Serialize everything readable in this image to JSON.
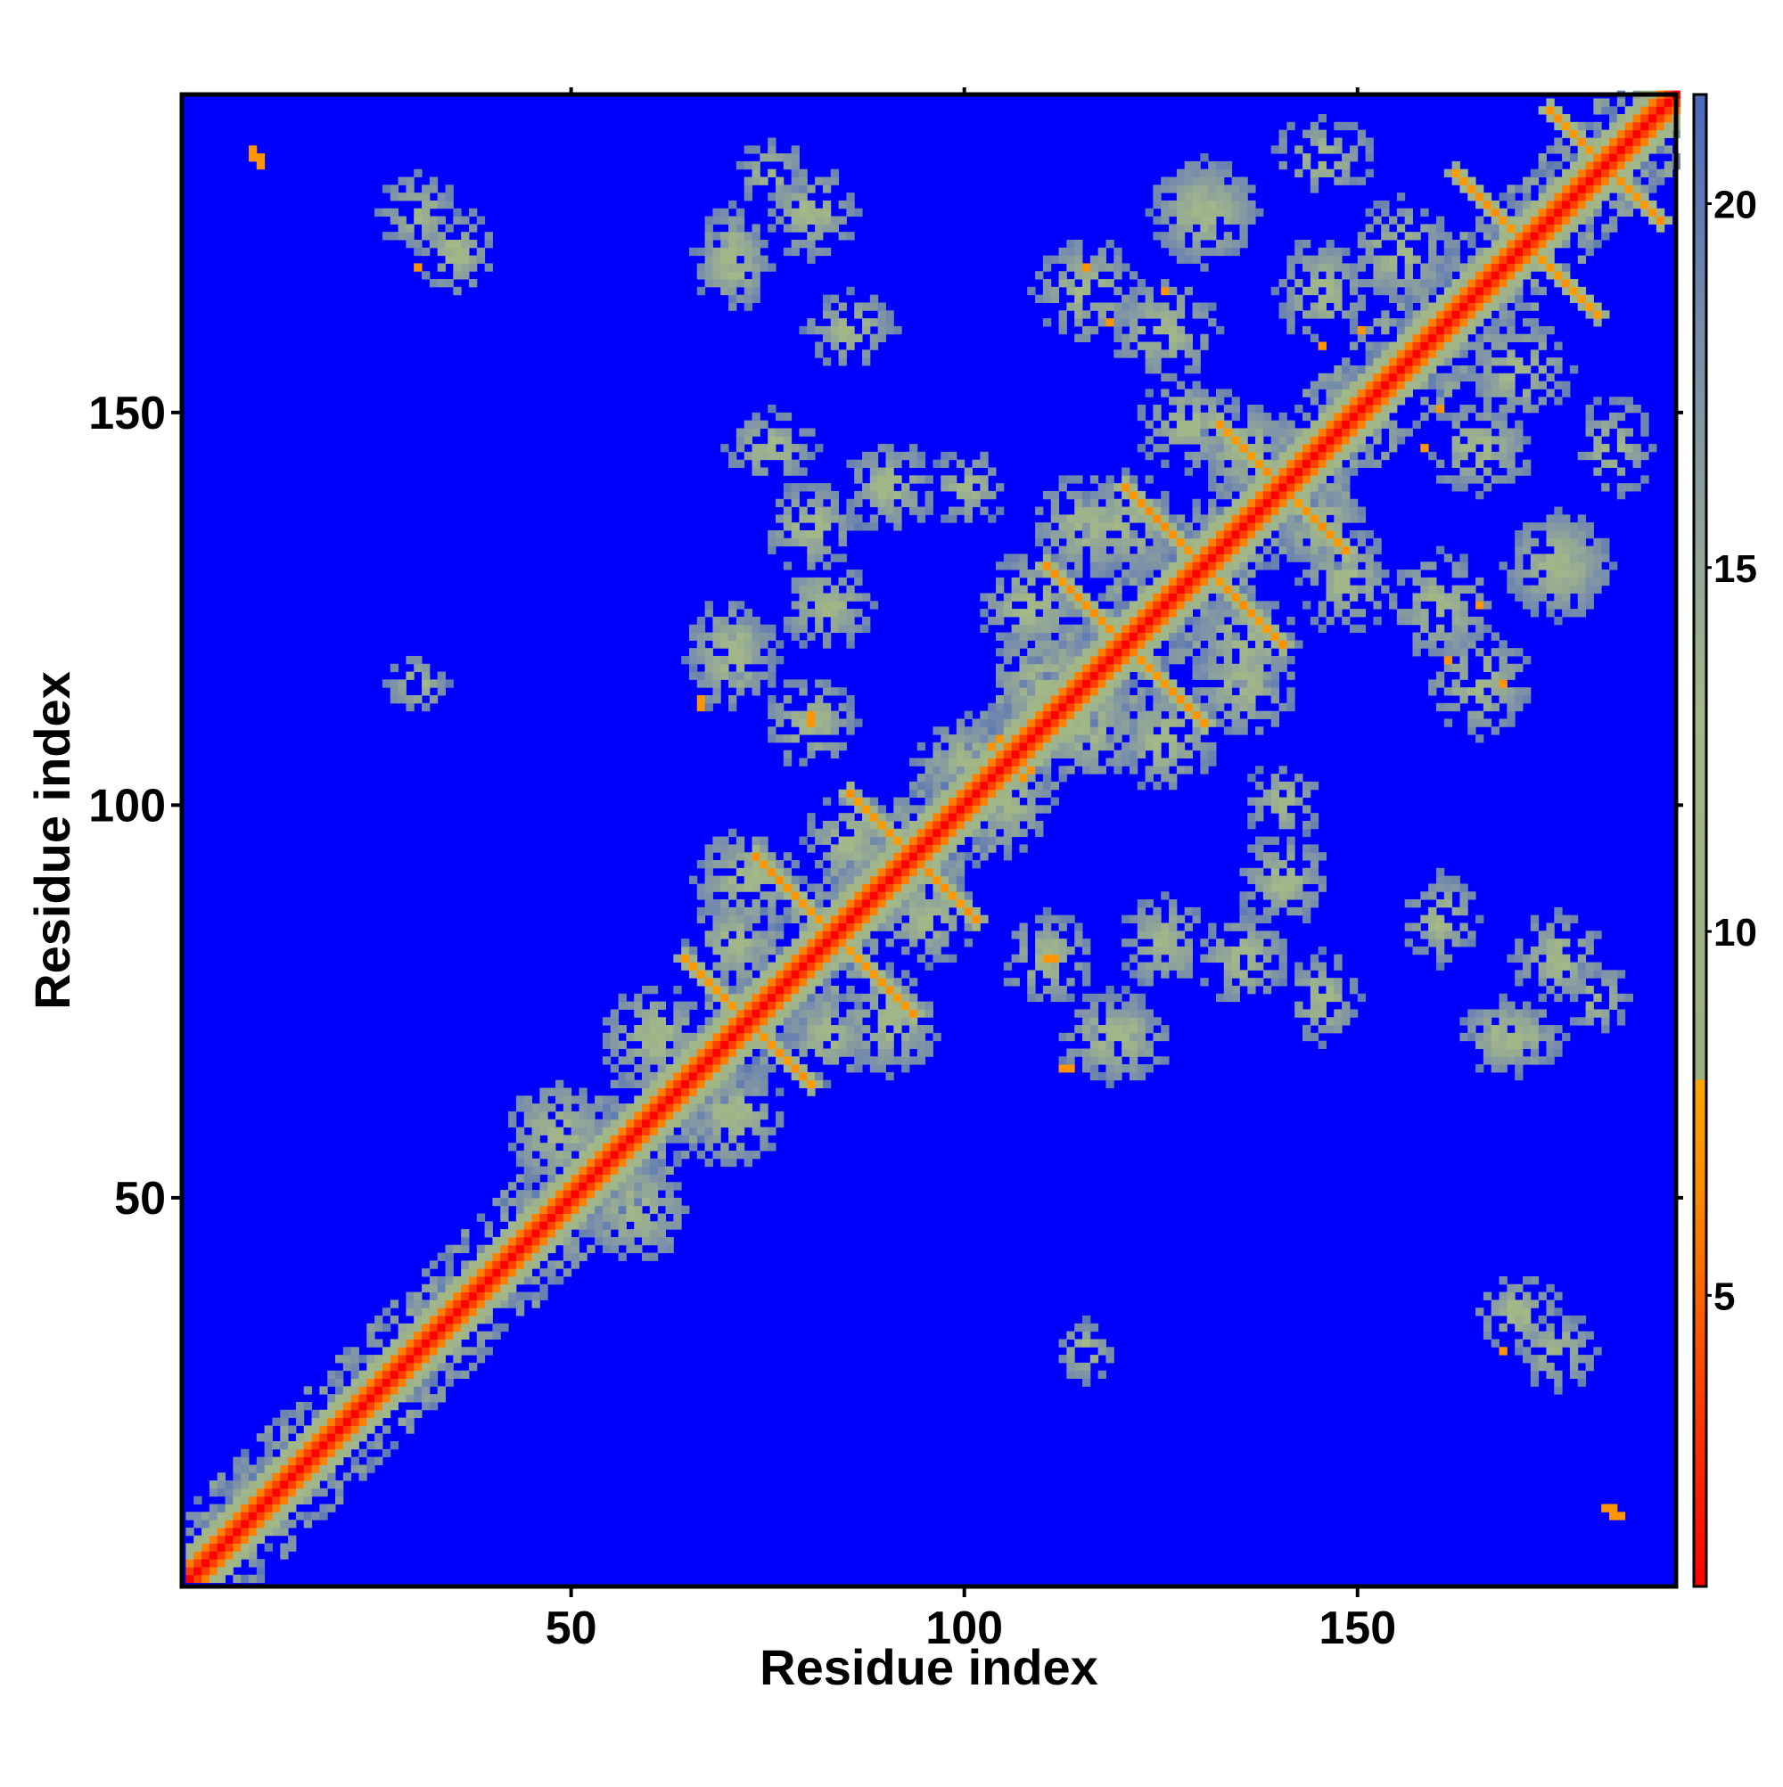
{
  "chart_data": {
    "type": "heatmap",
    "title": "",
    "xlabel": "Residue index",
    "ylabel": "Residue index",
    "xlim": [
      1,
      190
    ],
    "ylim": [
      1,
      190
    ],
    "x_ticks": [
      50,
      100,
      150
    ],
    "y_ticks": [
      50,
      100,
      150
    ],
    "colorbar": {
      "ticks": [
        5,
        10,
        15,
        20
      ],
      "range": [
        1,
        21.5
      ],
      "stops": [
        {
          "value": 1.0,
          "color": "#ff0000"
        },
        {
          "value": 4.0,
          "color": "#ff4a00"
        },
        {
          "value": 6.5,
          "color": "#ff8c00"
        },
        {
          "value": 8.0,
          "color": "#ffa500"
        },
        {
          "value": 8.01,
          "color": "#9aaf80"
        },
        {
          "value": 13.0,
          "color": "#a3b888"
        },
        {
          "value": 18.0,
          "color": "#7a8faa"
        },
        {
          "value": 21.5,
          "color": "#4a6ab8"
        }
      ],
      "background_color": "#0000ff"
    },
    "features": {
      "diagonal": {
        "value": 1
      },
      "helix_crosses": [
        {
          "center": 72,
          "arm": 8
        },
        {
          "center": 83,
          "arm": 10
        },
        {
          "center": 93,
          "arm": 8
        },
        {
          "center": 120,
          "arm": 10
        },
        {
          "center": 130,
          "arm": 10
        },
        {
          "center": 140,
          "arm": 8
        },
        {
          "center": 171,
          "arm": 9
        },
        {
          "center": 181,
          "arm": 7
        }
      ],
      "contact_blobs": [
        {
          "x": 58,
          "y": 48,
          "w": 14,
          "h": 14
        },
        {
          "x": 70,
          "y": 60,
          "w": 14,
          "h": 14
        },
        {
          "x": 82,
          "y": 70,
          "w": 12,
          "h": 12
        },
        {
          "x": 72,
          "y": 90,
          "w": 14,
          "h": 14
        },
        {
          "x": 85,
          "y": 95,
          "w": 12,
          "h": 12
        },
        {
          "x": 100,
          "y": 105,
          "w": 14,
          "h": 12
        },
        {
          "x": 110,
          "y": 115,
          "w": 16,
          "h": 16
        },
        {
          "x": 125,
          "y": 108,
          "w": 14,
          "h": 14
        },
        {
          "x": 135,
          "y": 120,
          "w": 14,
          "h": 14
        },
        {
          "x": 115,
          "y": 135,
          "w": 14,
          "h": 14
        },
        {
          "x": 128,
          "y": 148,
          "w": 14,
          "h": 12
        },
        {
          "x": 145,
          "y": 135,
          "w": 12,
          "h": 12
        },
        {
          "x": 160,
          "y": 125,
          "w": 14,
          "h": 14
        },
        {
          "x": 175,
          "y": 130,
          "w": 14,
          "h": 14
        },
        {
          "x": 165,
          "y": 145,
          "w": 14,
          "h": 12
        },
        {
          "x": 115,
          "y": 165,
          "w": 14,
          "h": 14
        },
        {
          "x": 130,
          "y": 175,
          "w": 14,
          "h": 14
        },
        {
          "x": 145,
          "y": 182,
          "w": 14,
          "h": 10
        },
        {
          "x": 155,
          "y": 170,
          "w": 14,
          "h": 14
        },
        {
          "x": 70,
          "y": 118,
          "w": 12,
          "h": 14
        },
        {
          "x": 82,
          "y": 125,
          "w": 12,
          "h": 12
        },
        {
          "x": 90,
          "y": 140,
          "w": 12,
          "h": 12
        },
        {
          "x": 75,
          "y": 145,
          "w": 12,
          "h": 10
        },
        {
          "x": 100,
          "y": 140,
          "w": 10,
          "h": 10
        },
        {
          "x": 110,
          "y": 80,
          "w": 12,
          "h": 12
        },
        {
          "x": 120,
          "y": 70,
          "w": 12,
          "h": 12
        },
        {
          "x": 135,
          "y": 80,
          "w": 12,
          "h": 12
        },
        {
          "x": 160,
          "y": 85,
          "w": 10,
          "h": 12
        },
        {
          "x": 175,
          "y": 80,
          "w": 12,
          "h": 12
        },
        {
          "x": 168,
          "y": 70,
          "w": 12,
          "h": 10
        },
        {
          "x": 70,
          "y": 170,
          "w": 10,
          "h": 12
        },
        {
          "x": 75,
          "y": 180,
          "w": 10,
          "h": 8
        },
        {
          "x": 30,
          "y": 175,
          "w": 10,
          "h": 10
        },
        {
          "x": 170,
          "y": 35,
          "w": 12,
          "h": 10
        },
        {
          "x": 115,
          "y": 30,
          "w": 8,
          "h": 8
        }
      ],
      "orange_spots": [
        {
          "x": 9,
          "y": 182
        },
        {
          "x": 10,
          "y": 181
        },
        {
          "x": 30,
          "y": 168
        },
        {
          "x": 35,
          "y": 36
        },
        {
          "x": 182,
          "y": 10
        },
        {
          "x": 183,
          "y": 9
        },
        {
          "x": 3,
          "y": 3
        },
        {
          "x": 4,
          "y": 4
        },
        {
          "x": 113,
          "y": 66
        },
        {
          "x": 111,
          "y": 80
        },
        {
          "x": 158,
          "y": 145
        },
        {
          "x": 161,
          "y": 118
        },
        {
          "x": 66,
          "y": 112
        },
        {
          "x": 80,
          "y": 110
        },
        {
          "x": 104,
          "y": 108
        },
        {
          "x": 107,
          "y": 103
        },
        {
          "x": 115,
          "y": 168
        },
        {
          "x": 125,
          "y": 165
        },
        {
          "x": 150,
          "y": 160
        }
      ]
    }
  }
}
